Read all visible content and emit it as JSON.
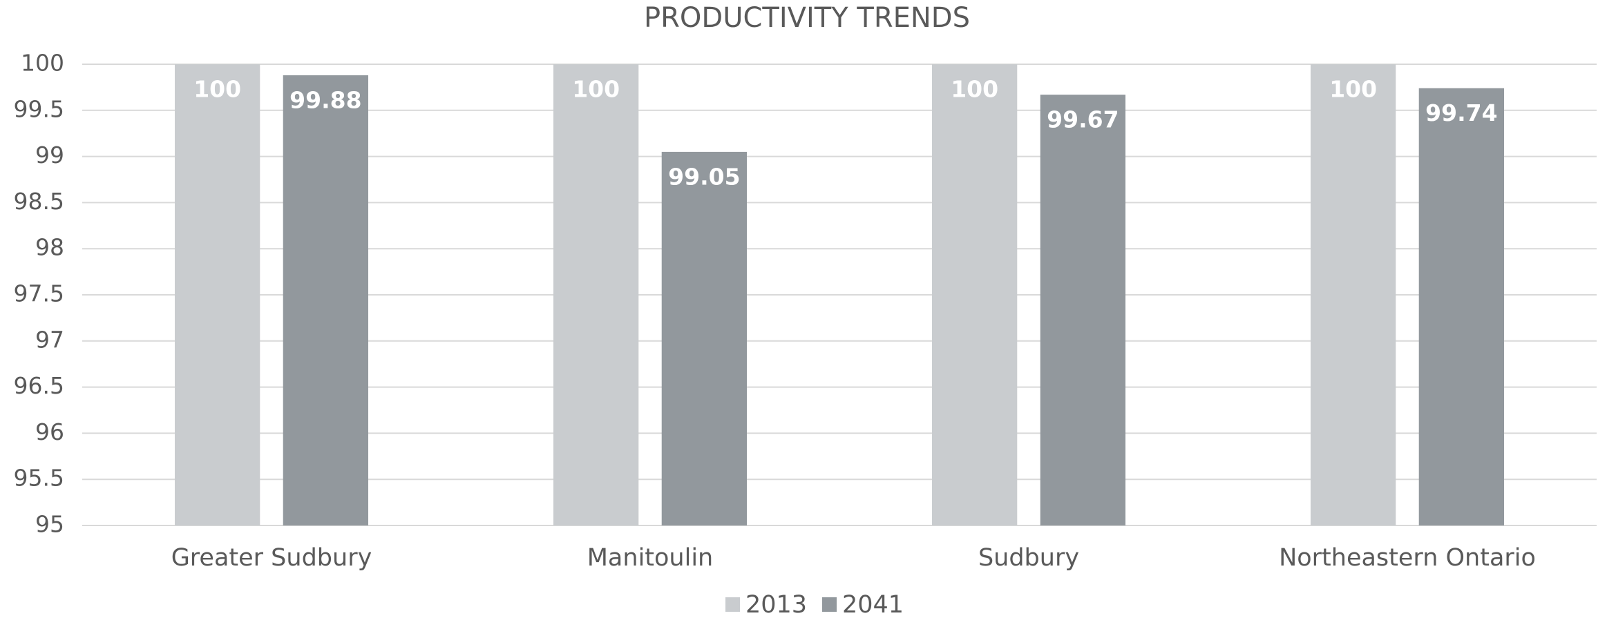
{
  "chart_data": {
    "type": "bar",
    "title": "PRODUCTIVITY TRENDS",
    "categories": [
      "Greater Sudbury",
      "Manitoulin",
      "Sudbury",
      "Northeastern Ontario"
    ],
    "series": [
      {
        "name": "2013",
        "color": "#c9cccf",
        "values": [
          100,
          100,
          100,
          100
        ]
      },
      {
        "name": "2041",
        "color": "#92989d",
        "values": [
          99.88,
          99.05,
          99.67,
          99.74
        ]
      }
    ],
    "ylim": [
      95,
      100
    ],
    "yticks": [
      95,
      95.5,
      96,
      96.5,
      97,
      97.5,
      98,
      98.5,
      99,
      99.5,
      100
    ],
    "grid": true,
    "legend": "bottom"
  }
}
